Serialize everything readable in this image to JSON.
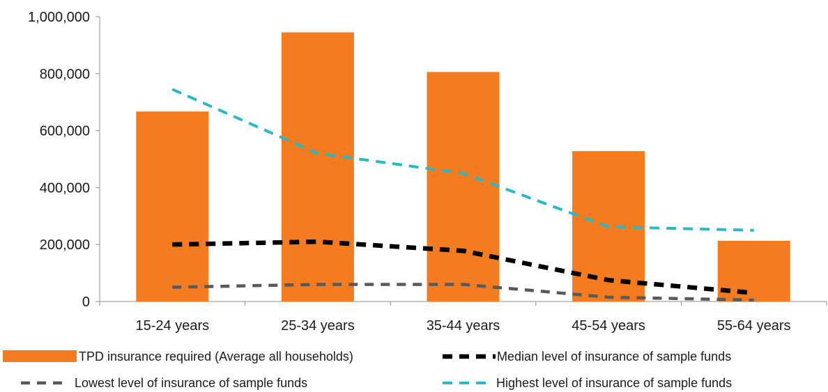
{
  "chart_data": {
    "type": "bar",
    "categories": [
      "15-24 years",
      "25-34 years",
      "35-44 years",
      "45-54 years",
      "55-64 years"
    ],
    "ylim": [
      0,
      1000000
    ],
    "y_ticks": [
      0,
      200000,
      400000,
      600000,
      800000,
      1000000
    ],
    "y_tick_labels": [
      "0",
      "200,000",
      "400,000",
      "600,000",
      "800,000",
      "1,000,000"
    ],
    "grid": false,
    "legend_position": "bottom",
    "bars": {
      "name": "TPD insurance required (Average all households)",
      "color": "#f47b20",
      "values": [
        667000,
        945000,
        806000,
        528000,
        213000
      ]
    },
    "lines": [
      {
        "name": "Median level of insurance of sample funds",
        "color": "#000000",
        "style": "dashed",
        "values": [
          200000,
          210000,
          178000,
          75000,
          30000
        ]
      },
      {
        "name": "Lowest level of insurance of sample funds",
        "color": "#595959",
        "style": "dashed",
        "values": [
          50000,
          60000,
          60000,
          15000,
          5000
        ]
      },
      {
        "name": "Highest level of insurance of sample funds",
        "color": "#2ab8c6",
        "style": "dashed",
        "values": [
          745000,
          520000,
          450000,
          262000,
          250000
        ]
      }
    ]
  }
}
